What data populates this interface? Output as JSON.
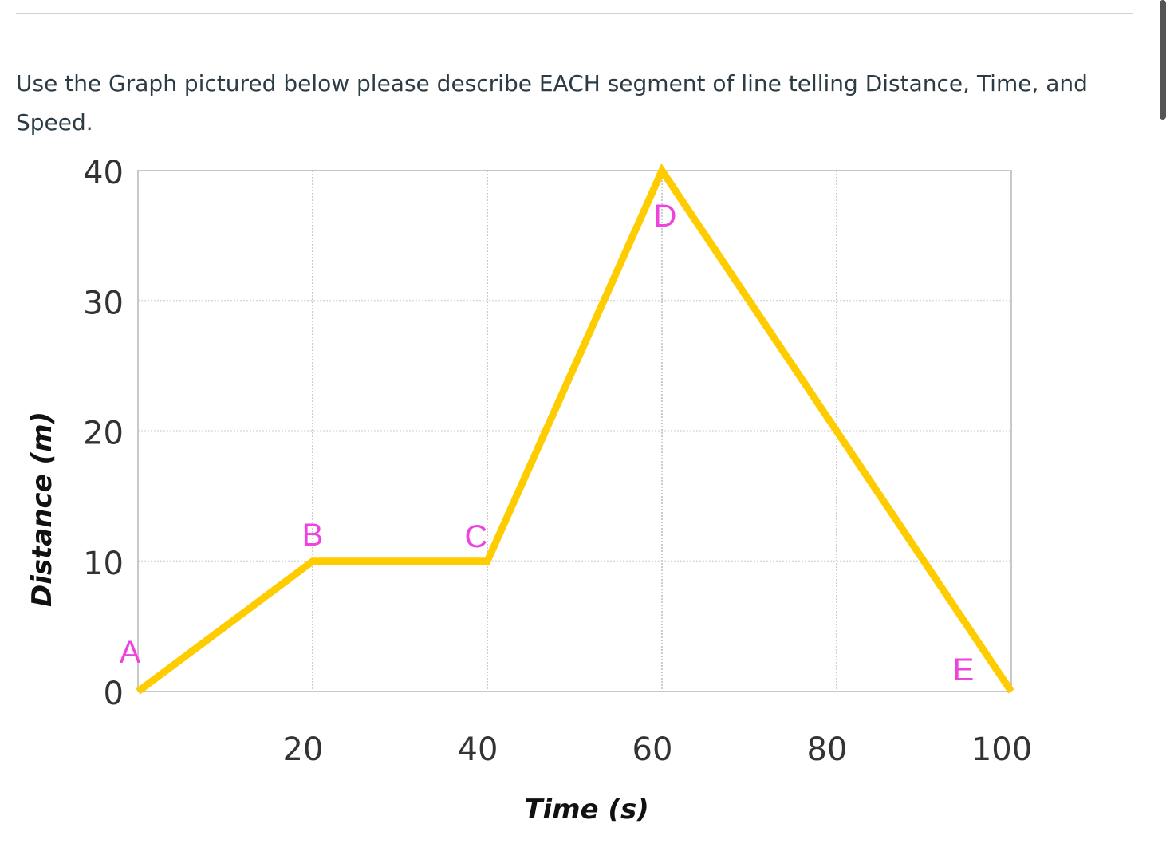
{
  "question": {
    "text": "Use the Graph pictured below please describe EACH segment of line telling Distance, Time, and Speed."
  },
  "colors": {
    "line": "#ffcc00",
    "point_label": "#ee44dd",
    "grid": "#cccccc",
    "frame": "#c8c8c8"
  },
  "chart_data": {
    "type": "line",
    "title": "",
    "xlabel": "Time (s)",
    "ylabel": "Distance (m)",
    "xlim": [
      0,
      100
    ],
    "ylim": [
      0,
      40
    ],
    "xticks": [
      20,
      40,
      60,
      80,
      100
    ],
    "yticks": [
      0,
      10,
      20,
      30,
      40
    ],
    "grid": true,
    "series": [
      {
        "x": [
          0,
          20,
          40,
          60,
          100
        ],
        "y": [
          0,
          10,
          10,
          40,
          0
        ]
      }
    ],
    "point_labels": [
      {
        "label": "A",
        "x": 0,
        "y": 0
      },
      {
        "label": "B",
        "x": 20,
        "y": 10
      },
      {
        "label": "C",
        "x": 40,
        "y": 10
      },
      {
        "label": "D",
        "x": 60,
        "y": 40
      },
      {
        "label": "E",
        "x": 100,
        "y": 0
      }
    ]
  }
}
